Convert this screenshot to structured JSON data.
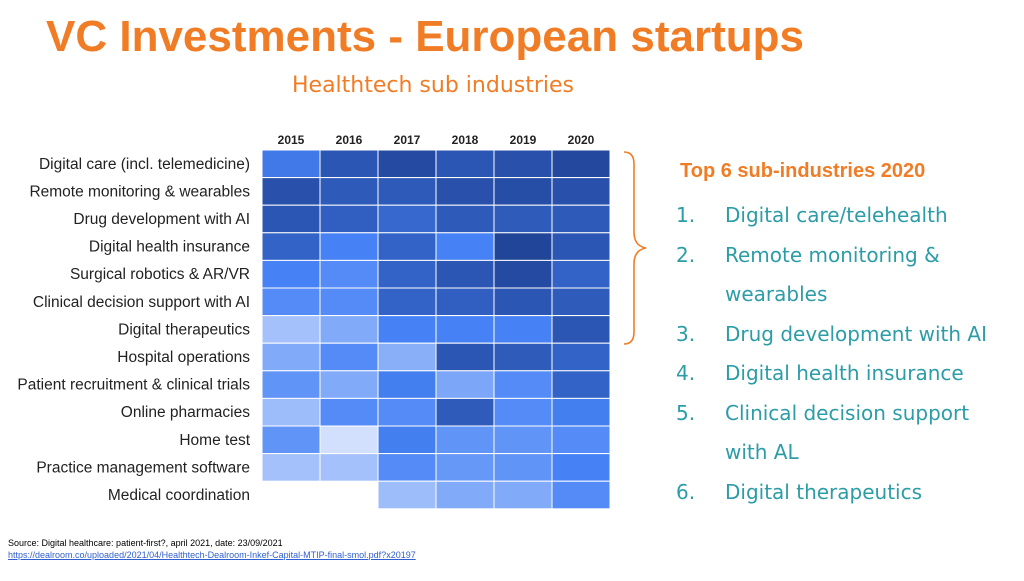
{
  "title": "VC Investments - European startups",
  "subtitle": "Healthtech sub industries",
  "right_panel": {
    "heading": "Top 6 sub-industries 2020",
    "items": [
      {
        "num": "1.",
        "text": "Digital care/telehealth"
      },
      {
        "num": "2.",
        "text": "Remote monitoring & wearables"
      },
      {
        "num": "3.",
        "text": "Drug development with AI"
      },
      {
        "num": "4.",
        "text": "Digital health insurance"
      },
      {
        "num": "5.",
        "text": "Clinical decision support with AL"
      },
      {
        "num": "6.",
        "text": "Digital therapeutics"
      }
    ]
  },
  "source": {
    "text": "Source: Digital healthcare: patient-first?, april 2021, date: 23/09/2021",
    "link": "https://dealroom.co/uploaded/2021/04/Healthtech-Dealroom-Inkef-Capital-MTIP-final-smol.pdf?x20197"
  },
  "colors": {
    "accent": "#f07d26",
    "list_text": "#2c9ca6",
    "link": "#2f5fd0"
  },
  "chart_data": {
    "type": "heatmap",
    "x": [
      "2015",
      "2016",
      "2017",
      "2018",
      "2019",
      "2020"
    ],
    "y": [
      "Digital care (incl. telemedicine)",
      "Remote monitoring & wearables",
      "Drug development with AI",
      "Digital health insurance",
      "Surgical robotics & AR/VR",
      "Clinical decision support with AI",
      "Digital therapeutics",
      "Hospital operations",
      "Patient recruitment & clinical trials",
      "Online pharmacies",
      "Home test",
      "Practice management software",
      "Medical coordination"
    ],
    "intensity": [
      [
        0.65,
        0.85,
        0.92,
        0.85,
        0.88,
        0.93
      ],
      [
        0.88,
        0.83,
        0.83,
        0.88,
        0.9,
        0.88
      ],
      [
        0.85,
        0.8,
        0.75,
        0.83,
        0.82,
        0.83
      ],
      [
        0.78,
        0.6,
        0.78,
        0.6,
        0.95,
        0.85
      ],
      [
        0.6,
        0.55,
        0.78,
        0.85,
        0.92,
        0.78
      ],
      [
        0.55,
        0.55,
        0.78,
        0.8,
        0.85,
        0.82
      ],
      [
        0.25,
        0.38,
        0.6,
        0.6,
        0.6,
        0.85
      ],
      [
        0.38,
        0.55,
        0.35,
        0.85,
        0.82,
        0.78
      ],
      [
        0.5,
        0.38,
        0.62,
        0.4,
        0.55,
        0.78
      ],
      [
        0.28,
        0.55,
        0.55,
        0.82,
        0.55,
        0.62
      ],
      [
        0.5,
        0.08,
        0.62,
        0.5,
        0.5,
        0.55
      ],
      [
        0.25,
        0.25,
        0.55,
        0.48,
        0.5,
        0.6
      ],
      [
        null,
        null,
        0.28,
        0.38,
        0.38,
        0.55
      ]
    ]
  }
}
